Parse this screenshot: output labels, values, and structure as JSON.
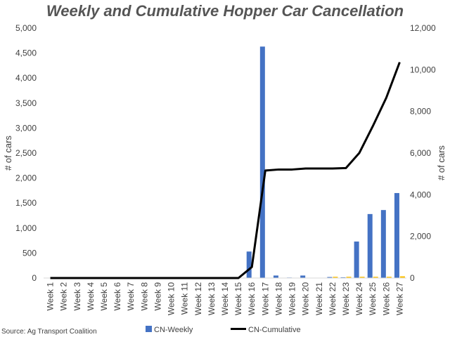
{
  "chart_data": {
    "type": "bar",
    "title": "Weekly and Cumulative Hopper Car Cancellation",
    "source": "Source: Ag Transport Coalition",
    "ylabel": "# of cars",
    "y2label": "# of cars",
    "ylim": [
      0,
      5000
    ],
    "y2lim": [
      0,
      12000
    ],
    "yticks": [
      "0",
      "500",
      "1,000",
      "1,500",
      "2,000",
      "2,500",
      "3,000",
      "3,500",
      "4,000",
      "4,500",
      "5,000"
    ],
    "y2ticks": [
      "0",
      "2,000",
      "4,000",
      "6,000",
      "8,000",
      "10,000",
      "12,000"
    ],
    "categories": [
      "Week 1",
      "Week 2",
      "Week 3",
      "Week 4",
      "Week 5",
      "Week 6",
      "Week 7",
      "Week 8",
      "Week 9",
      "Week 10",
      "Week 11",
      "Week 12",
      "Week 13",
      "Week 14",
      "Week 15",
      "Week 16",
      "Week 17",
      "Week 18",
      "Week 19",
      "Week 20",
      "Week 21",
      "Week 22",
      "Week 23",
      "Week 24",
      "Week 25",
      "Week 26",
      "Week 27"
    ],
    "grid": false,
    "legend_position": "bottom",
    "series": [
      {
        "name": "CN-Weekly",
        "type": "bar",
        "axis": "left",
        "color": "#4472C4",
        "values": [
          0,
          0,
          0,
          0,
          0,
          0,
          0,
          0,
          0,
          0,
          0,
          0,
          0,
          0,
          0,
          530,
          4630,
          50,
          10,
          50,
          5,
          20,
          15,
          730,
          1280,
          1360,
          1700
        ]
      },
      {
        "type": "bar",
        "axis": "left",
        "color": "#FFC000",
        "values": [
          0,
          0,
          0,
          0,
          0,
          0,
          0,
          0,
          0,
          0,
          0,
          0,
          0,
          0,
          0,
          0,
          0,
          0,
          0,
          0,
          0,
          25,
          25,
          25,
          25,
          25,
          35
        ]
      },
      {
        "name": "CN-Cumulative",
        "type": "line",
        "axis": "right",
        "color": "#000000",
        "values": [
          0,
          0,
          0,
          0,
          0,
          0,
          0,
          0,
          0,
          0,
          0,
          0,
          0,
          0,
          0,
          530,
          5160,
          5210,
          5210,
          5260,
          5260,
          5260,
          5280,
          6010,
          7290,
          8650,
          10360
        ]
      }
    ]
  }
}
